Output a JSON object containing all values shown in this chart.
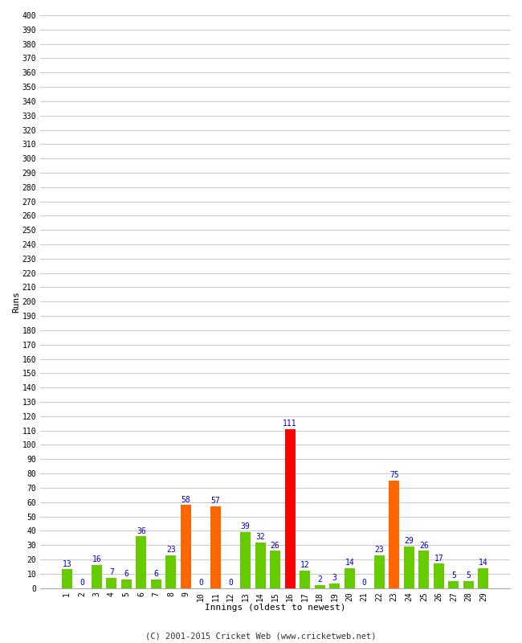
{
  "innings": [
    1,
    2,
    3,
    4,
    5,
    6,
    7,
    8,
    9,
    10,
    11,
    12,
    13,
    14,
    15,
    16,
    17,
    18,
    19,
    20,
    21,
    22,
    23,
    24,
    25,
    26,
    27,
    28,
    29
  ],
  "values": [
    13,
    0,
    16,
    7,
    6,
    36,
    6,
    23,
    58,
    0,
    57,
    0,
    39,
    32,
    26,
    111,
    12,
    2,
    3,
    14,
    0,
    23,
    75,
    29,
    26,
    17,
    5,
    5,
    14
  ],
  "colors": [
    "#66cc00",
    "#66cc00",
    "#66cc00",
    "#66cc00",
    "#66cc00",
    "#66cc00",
    "#66cc00",
    "#66cc00",
    "#ff6600",
    "#66cc00",
    "#ff6600",
    "#66cc00",
    "#66cc00",
    "#66cc00",
    "#66cc00",
    "#ff0000",
    "#66cc00",
    "#66cc00",
    "#66cc00",
    "#66cc00",
    "#66cc00",
    "#66cc00",
    "#ff6600",
    "#66cc00",
    "#66cc00",
    "#66cc00",
    "#66cc00",
    "#66cc00",
    "#66cc00"
  ],
  "xlabel": "Innings (oldest to newest)",
  "ylabel": "Runs",
  "yticks": [
    0,
    10,
    20,
    30,
    40,
    50,
    60,
    70,
    80,
    90,
    100,
    110,
    120,
    130,
    140,
    150,
    160,
    170,
    180,
    190,
    200,
    210,
    220,
    230,
    240,
    250,
    260,
    270,
    280,
    290,
    300,
    310,
    320,
    330,
    340,
    350,
    360,
    370,
    380,
    390,
    400
  ],
  "ylim": [
    0,
    400
  ],
  "grid_color": "#cccccc",
  "bg_color": "#ffffff",
  "label_color": "#0000cc",
  "footer": "(C) 2001-2015 Cricket Web (www.cricketweb.net)",
  "figsize": [
    6.5,
    8.0
  ],
  "dpi": 100
}
